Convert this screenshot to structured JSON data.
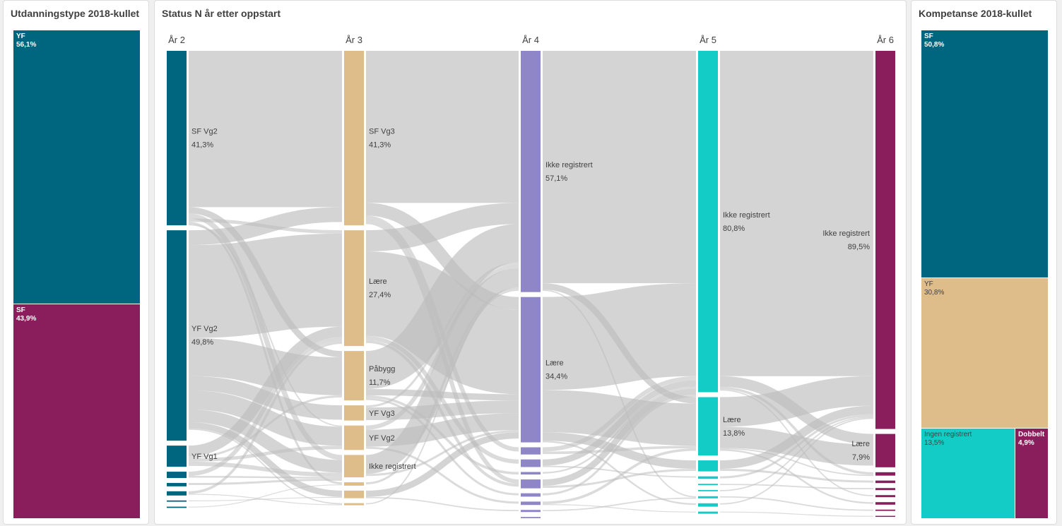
{
  "left": {
    "title": "Utdanningstype 2018-kullet",
    "cells": [
      {
        "label": "YF",
        "pct": "56,1%",
        "value": 56.1,
        "color": "#006680"
      },
      {
        "label": "SF",
        "pct": "43,9%",
        "value": 43.9,
        "color": "#8a1e5c"
      }
    ]
  },
  "center": {
    "title": "Status N år etter oppstart",
    "columns": [
      {
        "header": "År 2",
        "color": "#006680",
        "nodes": [
          {
            "label": "SF Vg2",
            "pct": "41,3%",
            "value": 41.3
          },
          {
            "label": "YF Vg2",
            "pct": "49,8%",
            "value": 49.8
          },
          {
            "label": "YF Vg1",
            "pct": "",
            "value": 5.0
          },
          {
            "label": "",
            "pct": "",
            "value": 1.5
          },
          {
            "label": "",
            "pct": "",
            "value": 0.8
          },
          {
            "label": "",
            "pct": "",
            "value": 1.0
          },
          {
            "label": "",
            "pct": "",
            "value": 0.3
          },
          {
            "label": "",
            "pct": "",
            "value": 0.3
          }
        ]
      },
      {
        "header": "År 3",
        "color": "#dfbd8a",
        "nodes": [
          {
            "label": "SF Vg3",
            "pct": "41,3%",
            "value": 41.3
          },
          {
            "label": "Lære",
            "pct": "27,4%",
            "value": 27.4
          },
          {
            "label": "Påbygg",
            "pct": "11,7%",
            "value": 11.7
          },
          {
            "label": "YF Vg3",
            "pct": "",
            "value": 3.6
          },
          {
            "label": "YF Vg2",
            "pct": "",
            "value": 5.8
          },
          {
            "label": "Ikke registrert",
            "pct": "",
            "value": 5.3
          },
          {
            "label": "",
            "pct": "",
            "value": 0.8
          },
          {
            "label": "",
            "pct": "",
            "value": 1.8
          },
          {
            "label": "",
            "pct": "",
            "value": 0.5
          }
        ]
      },
      {
        "header": "År 4",
        "color": "#8e86c6",
        "nodes": [
          {
            "label": "Ikke registrert",
            "pct": "57,1%",
            "value": 57.1
          },
          {
            "label": "Lære",
            "pct": "34,4%",
            "value": 34.4
          },
          {
            "label": "",
            "pct": "",
            "value": 1.7
          },
          {
            "label": "",
            "pct": "",
            "value": 1.8
          },
          {
            "label": "",
            "pct": "",
            "value": 0.6
          },
          {
            "label": "",
            "pct": "",
            "value": 2.1
          },
          {
            "label": "",
            "pct": "",
            "value": 0.8
          },
          {
            "label": "",
            "pct": "",
            "value": 0.8
          },
          {
            "label": "",
            "pct": "",
            "value": 0.5
          },
          {
            "label": "",
            "pct": "",
            "value": 0.3
          }
        ]
      },
      {
        "header": "År 5",
        "color": "#13ccc6",
        "nodes": [
          {
            "label": "Ikke registrert",
            "pct": "80,8%",
            "value": 80.8
          },
          {
            "label": "Lære",
            "pct": "13,8%",
            "value": 13.8
          },
          {
            "label": "",
            "pct": "",
            "value": 2.6
          },
          {
            "label": "",
            "pct": "",
            "value": 0.6
          },
          {
            "label": "",
            "pct": "",
            "value": 0.3
          },
          {
            "label": "",
            "pct": "",
            "value": 0.3
          },
          {
            "label": "",
            "pct": "",
            "value": 0.5
          },
          {
            "label": "",
            "pct": "",
            "value": 0.8
          },
          {
            "label": "",
            "pct": "",
            "value": 0.5
          }
        ]
      },
      {
        "header": "År 6",
        "color": "#8a1e5c",
        "nodes": [
          {
            "label": "Ikke registrert",
            "pct": "89,5%",
            "value": 89.5
          },
          {
            "label": "Lære",
            "pct": "7,9%",
            "value": 7.9
          },
          {
            "label": "",
            "pct": "",
            "value": 0.8
          },
          {
            "label": "",
            "pct": "",
            "value": 0.6
          },
          {
            "label": "",
            "pct": "",
            "value": 0.5
          },
          {
            "label": "",
            "pct": "",
            "value": 0.5
          },
          {
            "label": "",
            "pct": "",
            "value": 0.6
          },
          {
            "label": "",
            "pct": "",
            "value": 0.3
          },
          {
            "label": "",
            "pct": "",
            "value": 0.2
          }
        ]
      }
    ],
    "links": [
      [
        [
          0,
          0,
          37
        ],
        [
          0,
          2,
          1.5
        ],
        [
          0,
          5,
          1.2
        ],
        [
          0,
          1,
          0.8
        ],
        [
          0,
          6,
          0.5
        ],
        [
          0,
          4,
          0.3
        ],
        [
          1,
          0,
          3.5
        ],
        [
          1,
          1,
          22
        ],
        [
          1,
          2,
          9
        ],
        [
          1,
          3,
          3.4
        ],
        [
          1,
          4,
          4.5
        ],
        [
          1,
          5,
          3
        ],
        [
          1,
          7,
          1.5
        ],
        [
          1,
          8,
          0.3
        ],
        [
          2,
          1,
          2.5
        ],
        [
          2,
          2,
          0.5
        ],
        [
          2,
          4,
          0.8
        ],
        [
          2,
          5,
          1
        ],
        [
          3,
          1,
          1
        ],
        [
          3,
          5,
          0.4
        ],
        [
          4,
          5,
          0.5
        ],
        [
          5,
          1,
          0.6
        ],
        [
          5,
          8,
          0.2
        ],
        [
          6,
          7,
          0.2
        ],
        [
          7,
          6,
          0.2
        ]
      ],
      [
        [
          0,
          0,
          36
        ],
        [
          0,
          1,
          3
        ],
        [
          0,
          2,
          1
        ],
        [
          0,
          5,
          1
        ],
        [
          1,
          0,
          5
        ],
        [
          1,
          1,
          20
        ],
        [
          1,
          3,
          1
        ],
        [
          1,
          5,
          0.7
        ],
        [
          2,
          0,
          9
        ],
        [
          2,
          1,
          1.5
        ],
        [
          2,
          4,
          0.6
        ],
        [
          2,
          6,
          0.5
        ],
        [
          3,
          0,
          0.5
        ],
        [
          3,
          1,
          3
        ],
        [
          4,
          0,
          1
        ],
        [
          4,
          1,
          4
        ],
        [
          4,
          7,
          0.5
        ],
        [
          5,
          0,
          4.5
        ],
        [
          5,
          1,
          0.5
        ],
        [
          6,
          0,
          0.5
        ],
        [
          7,
          1,
          1.5
        ],
        [
          7,
          8,
          0.3
        ],
        [
          8,
          0,
          0.3
        ]
      ],
      [
        [
          0,
          0,
          55
        ],
        [
          0,
          1,
          1.5
        ],
        [
          0,
          6,
          0.3
        ],
        [
          1,
          0,
          22
        ],
        [
          1,
          1,
          10
        ],
        [
          1,
          2,
          2
        ],
        [
          1,
          7,
          0.4
        ],
        [
          2,
          0,
          1
        ],
        [
          2,
          1,
          0.6
        ],
        [
          3,
          0,
          1.5
        ],
        [
          3,
          3,
          0.3
        ],
        [
          4,
          0,
          0.4
        ],
        [
          5,
          0,
          1.5
        ],
        [
          5,
          2,
          0.5
        ],
        [
          6,
          0,
          0.5
        ],
        [
          7,
          1,
          0.6
        ],
        [
          7,
          8,
          0.2
        ],
        [
          8,
          6,
          0.3
        ]
      ],
      [
        [
          0,
          0,
          77
        ],
        [
          0,
          1,
          2.5
        ],
        [
          0,
          2,
          0.6
        ],
        [
          0,
          5,
          0.3
        ],
        [
          1,
          0,
          7
        ],
        [
          1,
          1,
          5
        ],
        [
          1,
          2,
          0.3
        ],
        [
          1,
          6,
          0.4
        ],
        [
          2,
          0,
          2
        ],
        [
          2,
          3,
          0.5
        ],
        [
          3,
          0,
          0.5
        ],
        [
          4,
          4,
          0.3
        ],
        [
          5,
          0,
          0.3
        ],
        [
          6,
          7,
          0.3
        ],
        [
          7,
          0,
          0.3
        ],
        [
          8,
          8,
          0.2
        ]
      ]
    ]
  },
  "right": {
    "title": "Kompetanse 2018-kullet",
    "cells": [
      {
        "label": "SF",
        "pct": "50,8%",
        "value": 50.8,
        "color": "#006680"
      },
      {
        "label": "YF",
        "pct": "30,8%",
        "value": 30.8,
        "color": "#dfbd8a"
      },
      {
        "label": "Ingen registrert",
        "pct": "13,5%",
        "value": 13.5,
        "color": "#13ccc6"
      },
      {
        "label": "Dobbelt",
        "pct": "4,9%",
        "value": 4.9,
        "color": "#8a1e5c"
      }
    ]
  }
}
